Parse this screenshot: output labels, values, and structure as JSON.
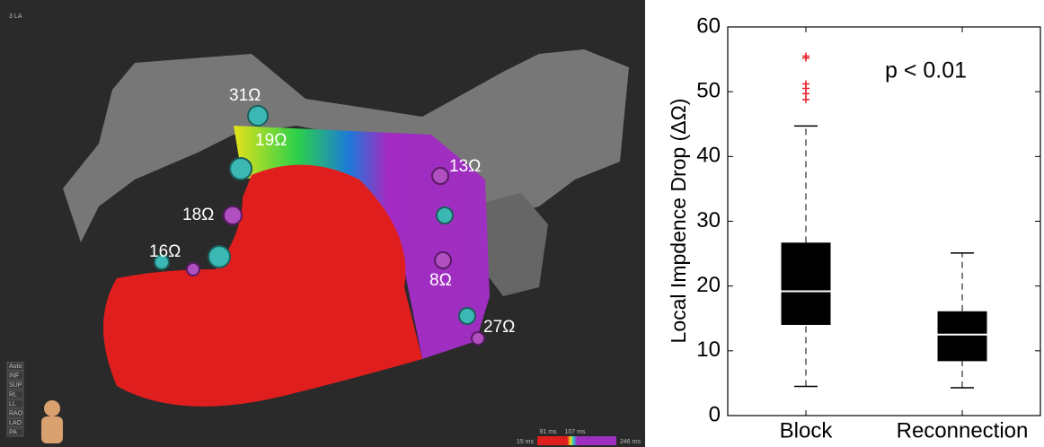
{
  "map_panel": {
    "view_label": "3 LA",
    "impedance_labels": [
      "31Ω",
      "19Ω",
      "13Ω",
      "18Ω",
      "16Ω",
      "8Ω",
      "27Ω"
    ],
    "colorbar_labels": [
      "91 ms",
      "107 ms",
      "15 ms",
      "246 ms"
    ],
    "side_buttons": [
      "Auto",
      "INF",
      "SUP",
      "RL",
      "LL",
      "RAO",
      "LAO",
      "PA"
    ]
  },
  "chart_data": {
    "type": "box",
    "annotation": "p < 0.01",
    "ylabel": "Local Impdence Drop (ΔΩ)",
    "categories": [
      "Block",
      "Reconnection"
    ],
    "boxes": [
      {
        "whisker_low": 4.5,
        "q1": 14,
        "median": 19.2,
        "q3": 26.7,
        "whisker_high": 44.7,
        "outliers": [
          48.8,
          49.7,
          50.5,
          51.2,
          55.2,
          55.5
        ]
      },
      {
        "whisker_low": 4.3,
        "q1": 8.4,
        "median": 12.5,
        "q3": 16.1,
        "whisker_high": 25.1,
        "outliers": []
      }
    ],
    "color": "#000000",
    "median_color": "#ffffff",
    "outlier_color": "#e8202a",
    "ylim": [
      0,
      60
    ],
    "yticks": [
      0,
      10,
      20,
      30,
      40,
      50,
      60
    ]
  }
}
